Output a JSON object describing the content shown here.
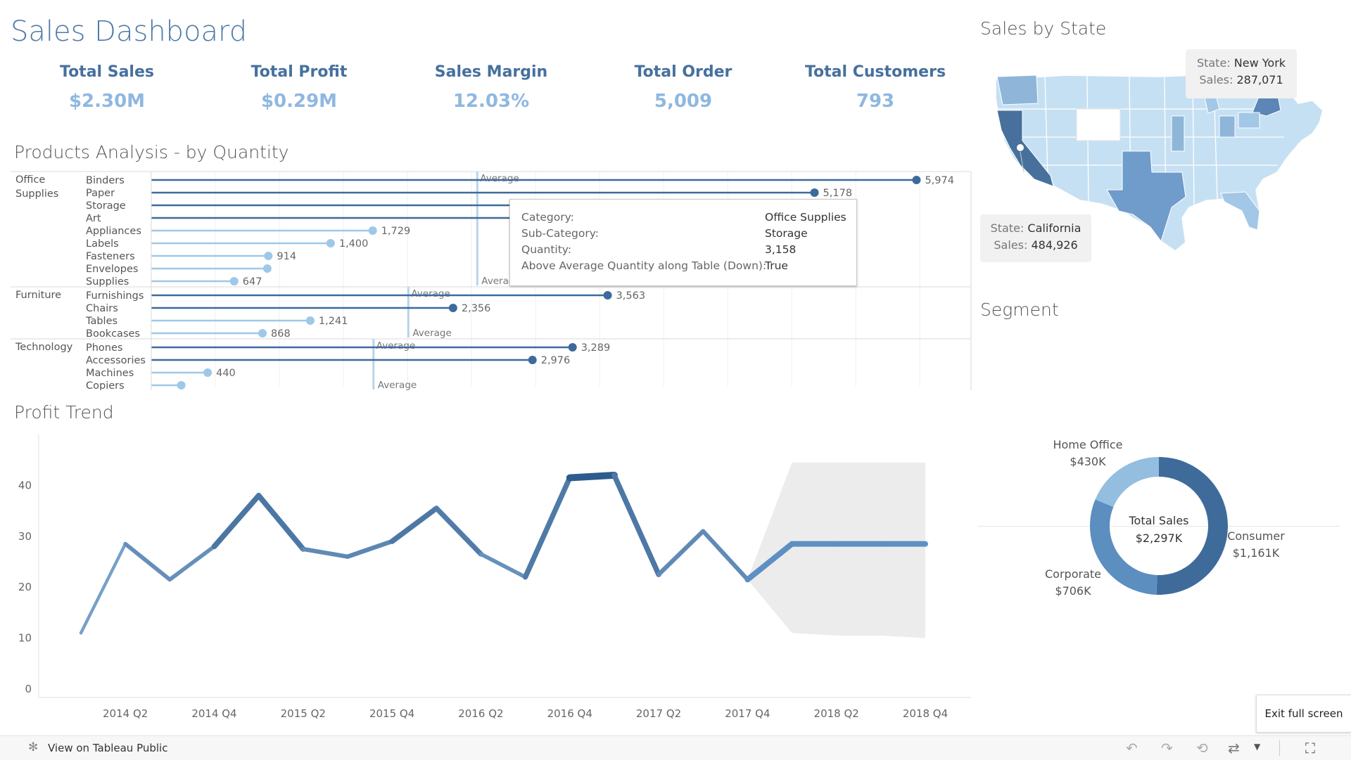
{
  "dashboard": {
    "title": "Sales Dashboard"
  },
  "kpis": [
    {
      "label": "Total Sales",
      "value": "$2.30M"
    },
    {
      "label": "Total Profit",
      "value": "$0.29M"
    },
    {
      "label": "Sales Margin",
      "value": "12.03%"
    },
    {
      "label": "Total Order",
      "value": "5,009"
    },
    {
      "label": "Total Customers",
      "value": "793"
    }
  ],
  "products": {
    "title": "Products Analysis - by Quantity",
    "average_label": "Average",
    "categories": [
      {
        "name_lines": [
          "Office",
          "Supplies"
        ],
        "items": [
          {
            "name": "Binders",
            "value": 5974,
            "label": "5,974",
            "above": true
          },
          {
            "name": "Paper",
            "value": 5178,
            "label": "5,178",
            "above": true
          },
          {
            "name": "Storage",
            "value": 3158,
            "label": "",
            "above": true
          },
          {
            "name": "Art",
            "value": 3000,
            "label": "",
            "above": true
          },
          {
            "name": "Appliances",
            "value": 1729,
            "label": "1,729",
            "above": false
          },
          {
            "name": "Labels",
            "value": 1400,
            "label": "1,400",
            "above": false
          },
          {
            "name": "Fasteners",
            "value": 914,
            "label": "914",
            "above": false
          },
          {
            "name": "Envelopes",
            "value": 906,
            "label": "",
            "above": false
          },
          {
            "name": "Supplies",
            "value": 647,
            "label": "647",
            "above": false
          }
        ]
      },
      {
        "name_lines": [
          "Furniture"
        ],
        "items": [
          {
            "name": "Furnishings",
            "value": 3563,
            "label": "3,563",
            "above": true
          },
          {
            "name": "Chairs",
            "value": 2356,
            "label": "2,356",
            "above": true
          },
          {
            "name": "Tables",
            "value": 1241,
            "label": "1,241",
            "above": false
          },
          {
            "name": "Bookcases",
            "value": 868,
            "label": "868",
            "above": false
          }
        ]
      },
      {
        "name_lines": [
          "Technology"
        ],
        "items": [
          {
            "name": "Phones",
            "value": 3289,
            "label": "3,289",
            "above": true
          },
          {
            "name": "Accessories",
            "value": 2976,
            "label": "2,976",
            "above": true
          },
          {
            "name": "Machines",
            "value": 440,
            "label": "440",
            "above": false
          },
          {
            "name": "Copiers",
            "value": 234,
            "label": "",
            "above": false
          }
        ]
      }
    ],
    "tooltip": {
      "rows": [
        {
          "key": "Category:",
          "val": "Office Supplies"
        },
        {
          "key": "Sub-Category:",
          "val": "Storage"
        },
        {
          "key": "Quantity:",
          "val": "3,158"
        },
        {
          "key": "Above Average Quantity along Table (Down):",
          "val": "True"
        }
      ]
    }
  },
  "profit_trend": {
    "title": "Profit Trend"
  },
  "chart_data": {
    "type": "line",
    "x": [
      "2014 Q1",
      "2014 Q2",
      "2014 Q3",
      "2014 Q4",
      "2015 Q1",
      "2015 Q2",
      "2015 Q3",
      "2015 Q4",
      "2016 Q1",
      "2016 Q2",
      "2016 Q3",
      "2016 Q4",
      "2017 Q1",
      "2017 Q2",
      "2017 Q3",
      "2017 Q4",
      "2018 Q1",
      "2018 Q2",
      "2018 Q3",
      "2018 Q4"
    ],
    "series": [
      {
        "values": [
          11,
          28.5,
          21.5,
          28,
          38,
          27.5,
          26,
          29,
          35.5,
          26.5,
          22,
          41.5,
          42,
          22.5,
          31,
          21.5,
          28.5,
          28.5,
          28.5,
          28.5
        ]
      }
    ],
    "forecast_start_index": 15,
    "forecast_band": {
      "upper": [
        21.5,
        44.5,
        44.5,
        44.5,
        44.5
      ],
      "lower": [
        21.5,
        11,
        10.5,
        10.5,
        10
      ]
    },
    "xticks": [
      "2014 Q2",
      "2014 Q4",
      "2015 Q2",
      "2015 Q4",
      "2016 Q2",
      "2016 Q4",
      "2017 Q2",
      "2017 Q4",
      "2018 Q2",
      "2018 Q4"
    ],
    "yticks": [
      "0",
      "10",
      "20",
      "30",
      "40"
    ],
    "ylim": [
      0,
      50
    ]
  },
  "map": {
    "title": "Sales by State",
    "tip_ny": {
      "state_key": "State:",
      "state_val": "New York",
      "sales_key": "Sales:",
      "sales_val": "287,071"
    },
    "tip_ca": {
      "state_key": "State:",
      "state_val": "California",
      "sales_key": "Sales:",
      "sales_val": "484,926"
    }
  },
  "segment": {
    "title": "Segment",
    "center_title": "Total Sales",
    "center_value": "$2,297K",
    "slices": [
      {
        "name": "Consumer",
        "label": "$1,161K",
        "value": 1161,
        "color": "#3f6b9b"
      },
      {
        "name": "Corporate",
        "label": "$706K",
        "value": 706,
        "color": "#5c8ec0"
      },
      {
        "name": "Home Office",
        "label": "$430K",
        "value": 430,
        "color": "#93bedf"
      }
    ]
  },
  "footer": {
    "tableau_link": "View on Tableau Public",
    "exit_fullscreen": "Exit full screen"
  },
  "colors": {
    "dark_blue": "#3d6a9b",
    "light_blue": "#9ec8e8",
    "title_blue": "#4f7aa8"
  }
}
